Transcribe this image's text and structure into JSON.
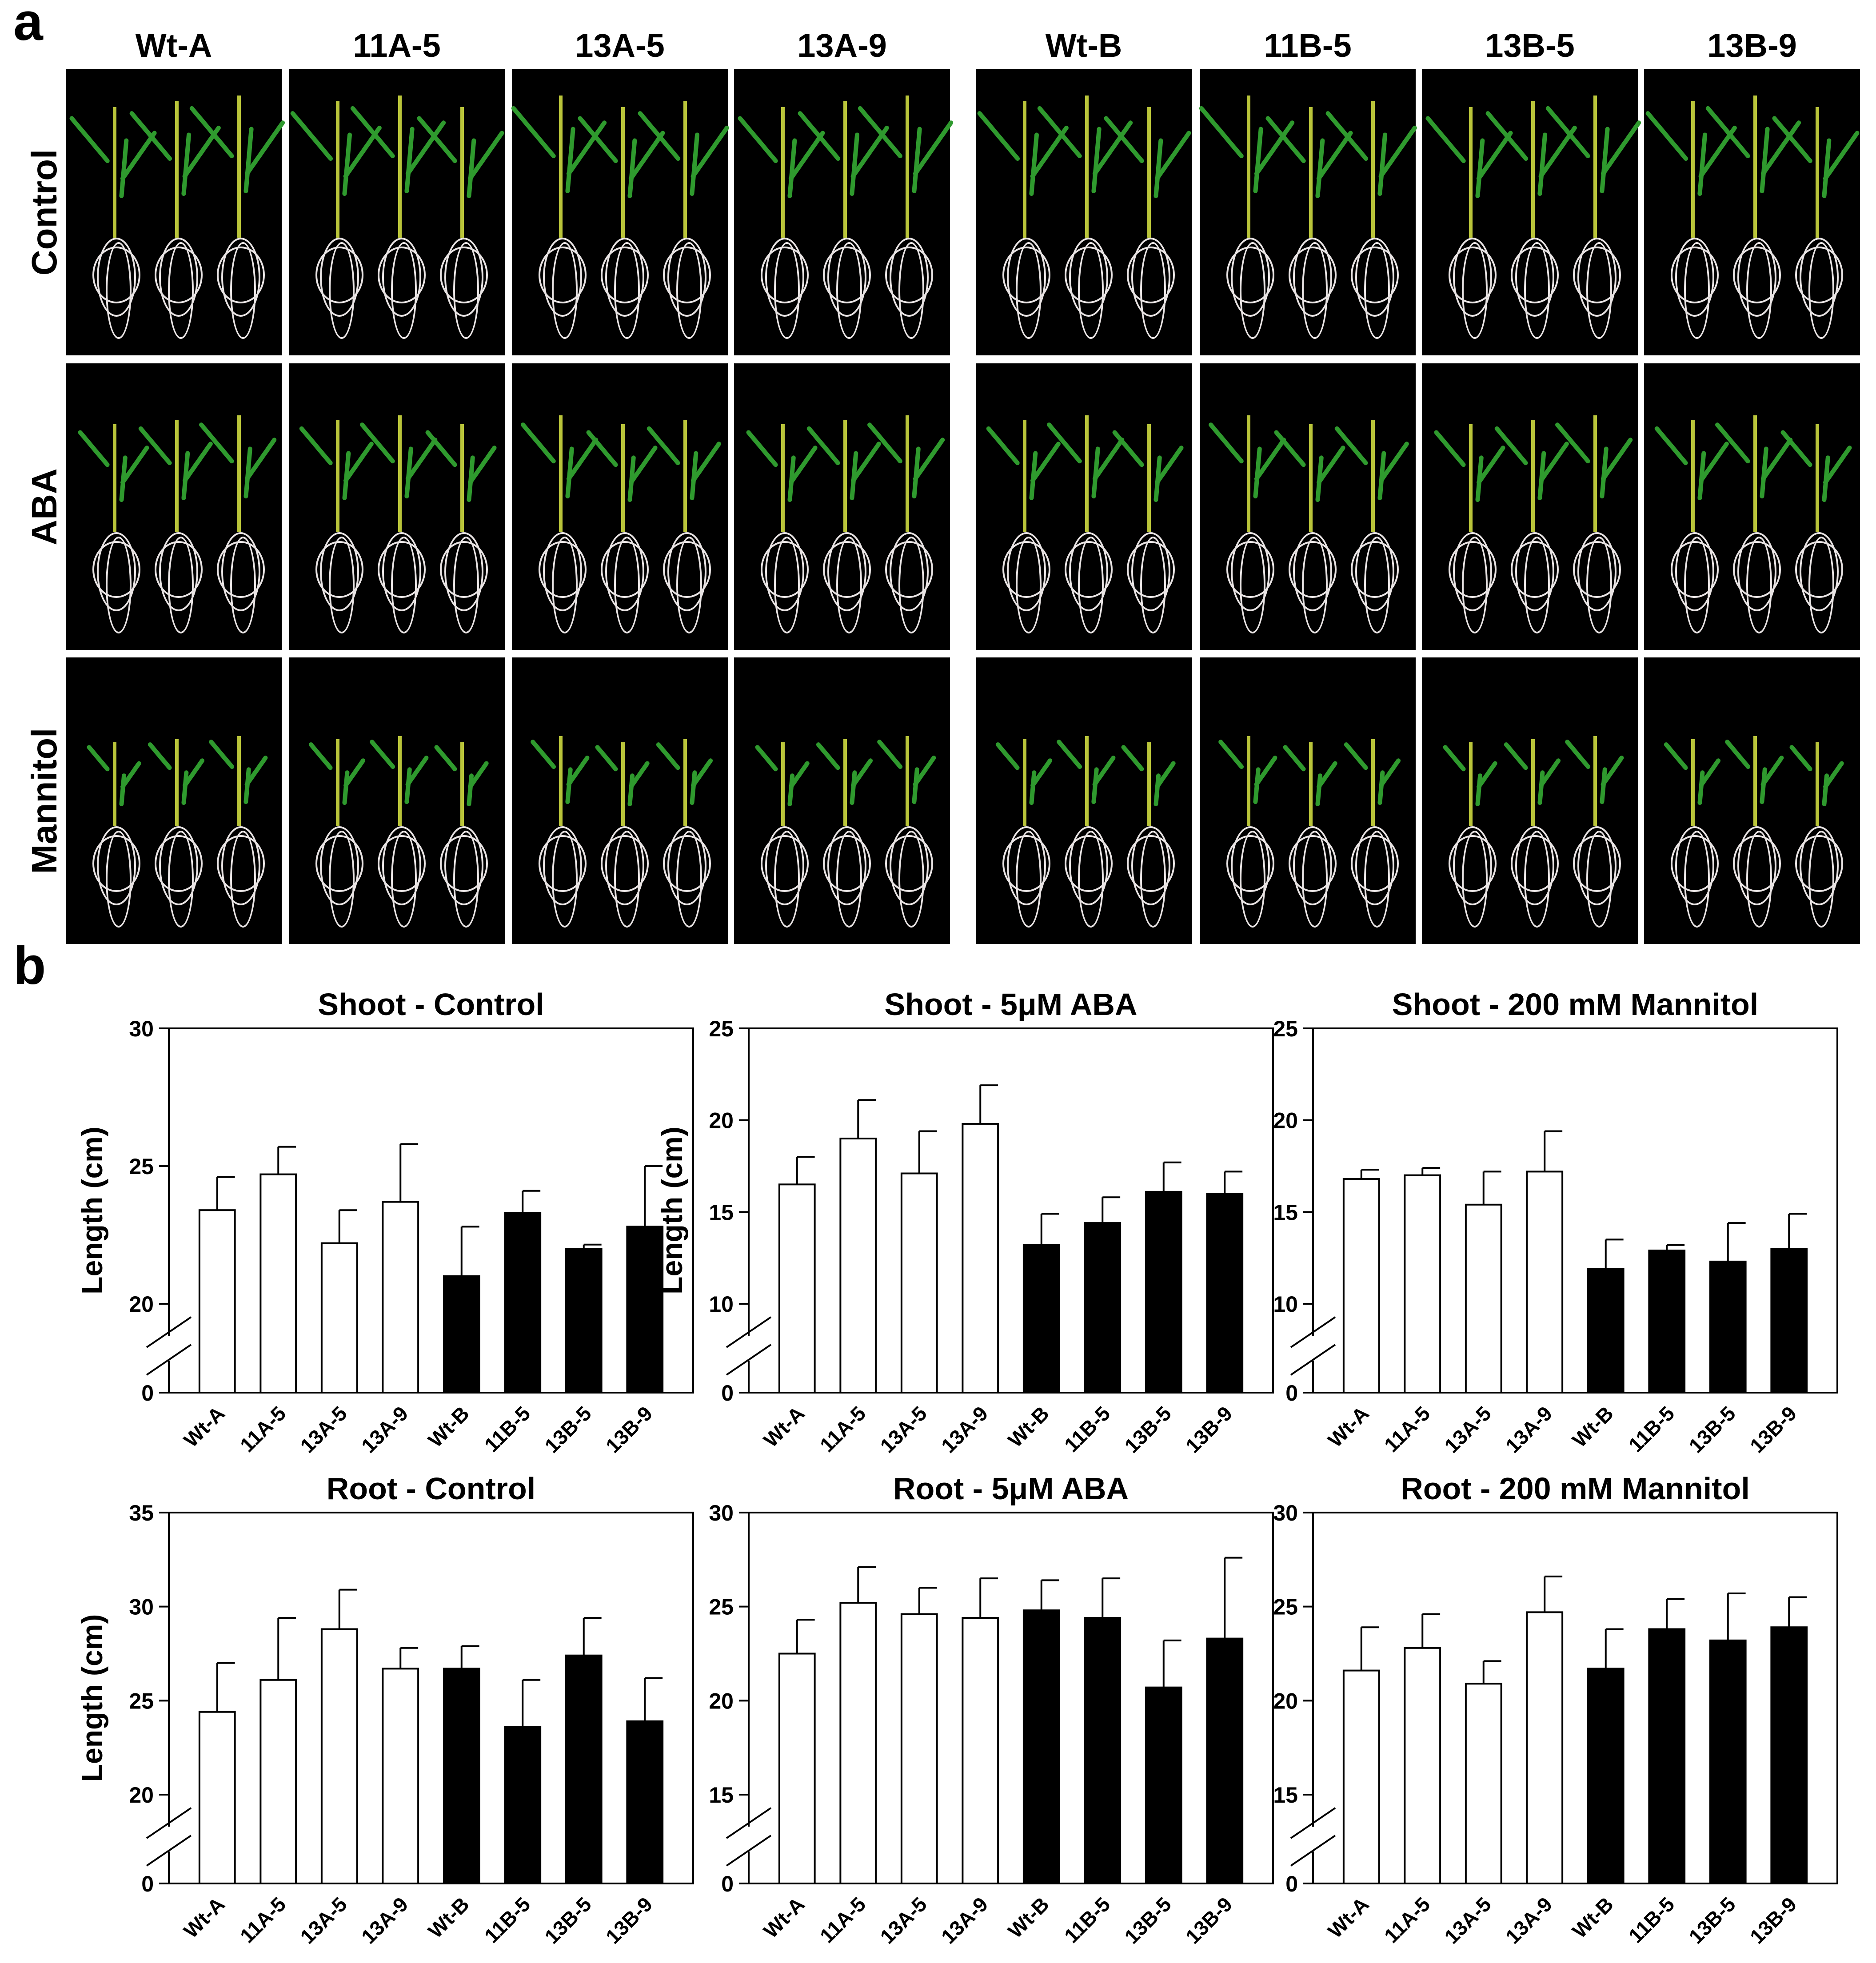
{
  "panel_a": {
    "letter": "a",
    "columns": [
      "Wt-A",
      "11A-5",
      "13A-5",
      "13A-9",
      "Wt-B",
      "11B-5",
      "13B-5",
      "13B-9"
    ],
    "rows": [
      "Control",
      "ABA",
      "Mannitol"
    ]
  },
  "panel_b": {
    "letter": "b"
  },
  "colors": {
    "line_A": "#ffffff",
    "line_B": "#000000",
    "stroke": "#000000",
    "photo_bg": "#000000",
    "leaf": "#2f9a2e"
  },
  "chart_data": [
    {
      "type": "bar",
      "title": "Shoot - Control",
      "ylabel": "Length (cm)",
      "categories": [
        "Wt-A",
        "11A-5",
        "13A-5",
        "13A-9",
        "Wt-B",
        "11B-5",
        "13B-5",
        "13B-9"
      ],
      "values": [
        23.4,
        24.7,
        22.2,
        23.7,
        21.0,
        23.3,
        22.0,
        22.8
      ],
      "errors": [
        1.2,
        1.0,
        1.2,
        2.1,
        1.8,
        0.8,
        0.15,
        2.2
      ],
      "ylim": [
        20,
        30
      ],
      "yticks": [
        "30",
        "25",
        "20",
        "0"
      ],
      "axis_break": true
    },
    {
      "type": "bar",
      "title": "Shoot - 5μM ABA",
      "ylabel": "Length (cm)",
      "categories": [
        "Wt-A",
        "11A-5",
        "13A-5",
        "13A-9",
        "Wt-B",
        "11B-5",
        "13B-5",
        "13B-9"
      ],
      "values": [
        16.5,
        19.0,
        17.1,
        19.8,
        13.2,
        14.4,
        16.1,
        16.0
      ],
      "errors": [
        1.5,
        2.1,
        2.3,
        2.1,
        1.7,
        1.4,
        1.6,
        1.2
      ],
      "ylim": [
        10,
        25
      ],
      "yticks": [
        "25",
        "20",
        "15",
        "10",
        "0"
      ],
      "axis_break": true
    },
    {
      "type": "bar",
      "title": "Shoot - 200 mM Mannitol",
      "ylabel": "",
      "categories": [
        "Wt-A",
        "11A-5",
        "13A-5",
        "13A-9",
        "Wt-B",
        "11B-5",
        "13B-5",
        "13B-9"
      ],
      "values": [
        16.8,
        17.0,
        15.4,
        17.2,
        11.9,
        12.9,
        12.3,
        13.0
      ],
      "errors": [
        0.5,
        0.4,
        1.8,
        2.2,
        1.6,
        0.3,
        2.1,
        1.9
      ],
      "ylim": [
        10,
        25
      ],
      "yticks": [
        "25",
        "20",
        "15",
        "10",
        "0"
      ],
      "axis_break": true
    },
    {
      "type": "bar",
      "title": "Root - Control",
      "ylabel": "Length (cm)",
      "categories": [
        "Wt-A",
        "11A-5",
        "13A-5",
        "13A-9",
        "Wt-B",
        "11B-5",
        "13B-5",
        "13B-9"
      ],
      "values": [
        24.4,
        26.1,
        28.8,
        26.7,
        26.7,
        23.6,
        27.4,
        23.9
      ],
      "errors": [
        2.6,
        3.3,
        2.1,
        1.1,
        1.2,
        2.5,
        2.0,
        2.3
      ],
      "ylim": [
        20,
        35
      ],
      "yticks": [
        "35",
        "30",
        "25",
        "20",
        "0"
      ],
      "axis_break": true
    },
    {
      "type": "bar",
      "title": "Root - 5μM ABA",
      "ylabel": "",
      "categories": [
        "Wt-A",
        "11A-5",
        "13A-5",
        "13A-9",
        "Wt-B",
        "11B-5",
        "13B-5",
        "13B-9"
      ],
      "values": [
        22.5,
        25.2,
        24.6,
        24.4,
        24.8,
        24.4,
        20.7,
        23.3
      ],
      "errors": [
        1.8,
        1.9,
        1.4,
        2.1,
        1.6,
        2.1,
        2.5,
        4.3
      ],
      "ylim": [
        15,
        30
      ],
      "yticks": [
        "30",
        "25",
        "20",
        "15",
        "0"
      ],
      "axis_break": true
    },
    {
      "type": "bar",
      "title": "Root - 200 mM Mannitol",
      "ylabel": "",
      "categories": [
        "Wt-A",
        "11A-5",
        "13A-5",
        "13A-9",
        "Wt-B",
        "11B-5",
        "13B-5",
        "13B-9"
      ],
      "values": [
        21.6,
        22.8,
        20.9,
        24.7,
        21.7,
        23.8,
        23.2,
        23.9
      ],
      "errors": [
        2.3,
        1.8,
        1.2,
        1.9,
        2.1,
        1.6,
        2.5,
        1.6
      ],
      "ylim": [
        15,
        30
      ],
      "yticks": [
        "30",
        "25",
        "20",
        "15",
        "0"
      ],
      "axis_break": true
    }
  ]
}
